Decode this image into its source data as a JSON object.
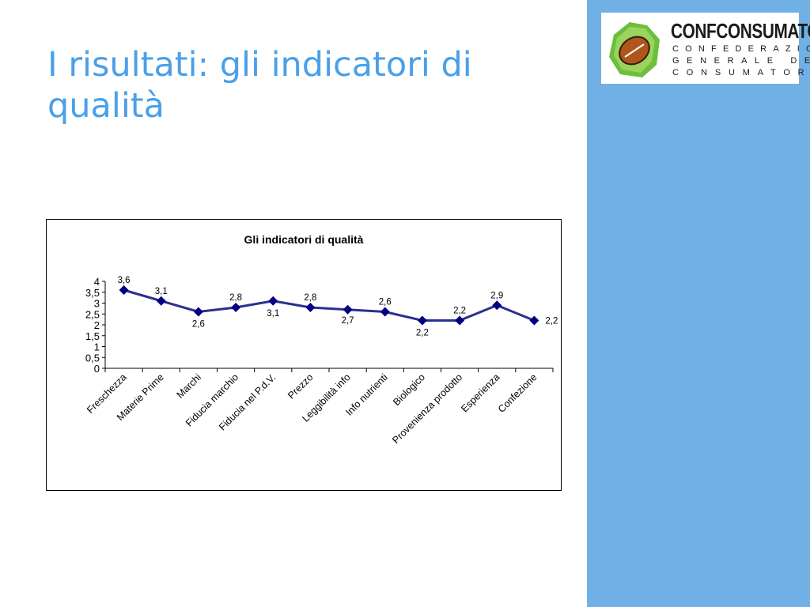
{
  "slide": {
    "title": "I risultati: gli indicatori di qualità"
  },
  "logo": {
    "name": "CONFCONSUMATORI",
    "line1": "CONFEDERAZIONE",
    "line2": "GENERALE DEI",
    "line3": "CONSUMATORI",
    "icon": "rugby-ball-icon"
  },
  "colors": {
    "title": "#4aa0e8",
    "side_panel": "#70b0e4",
    "series_line": "#2c2f8f",
    "marker": "#000080"
  },
  "chart_data": {
    "type": "line",
    "title": "Gli indicatori di qualità",
    "xlabel": "",
    "ylabel": "",
    "ylim": [
      0,
      4
    ],
    "yticks": [
      "0",
      "0,5",
      "1",
      "1,5",
      "2",
      "2,5",
      "3",
      "3,5",
      "4"
    ],
    "grid": false,
    "legend": "none",
    "categories": [
      "Freschezza",
      "Materie Prime",
      "Marchi",
      "Fiducia marchio",
      "Fiducia nel P.d.V.",
      "Prezzo",
      "Leggibilità info",
      "Info nutrienti",
      "Biologico",
      "Provenienza prodotto",
      "Esperienza",
      "Confezione"
    ],
    "series": [
      {
        "values": [
          3.6,
          3.1,
          2.6,
          2.8,
          3.1,
          2.8,
          2.7,
          2.6,
          2.2,
          2.2,
          2.9,
          2.2
        ],
        "labels": [
          "3,6",
          "3,1",
          "2,6",
          "2,8",
          "3,1",
          "2,8",
          "2,7",
          "2,6",
          "2,2",
          "2,2",
          "2,9",
          "2,2"
        ]
      }
    ]
  }
}
